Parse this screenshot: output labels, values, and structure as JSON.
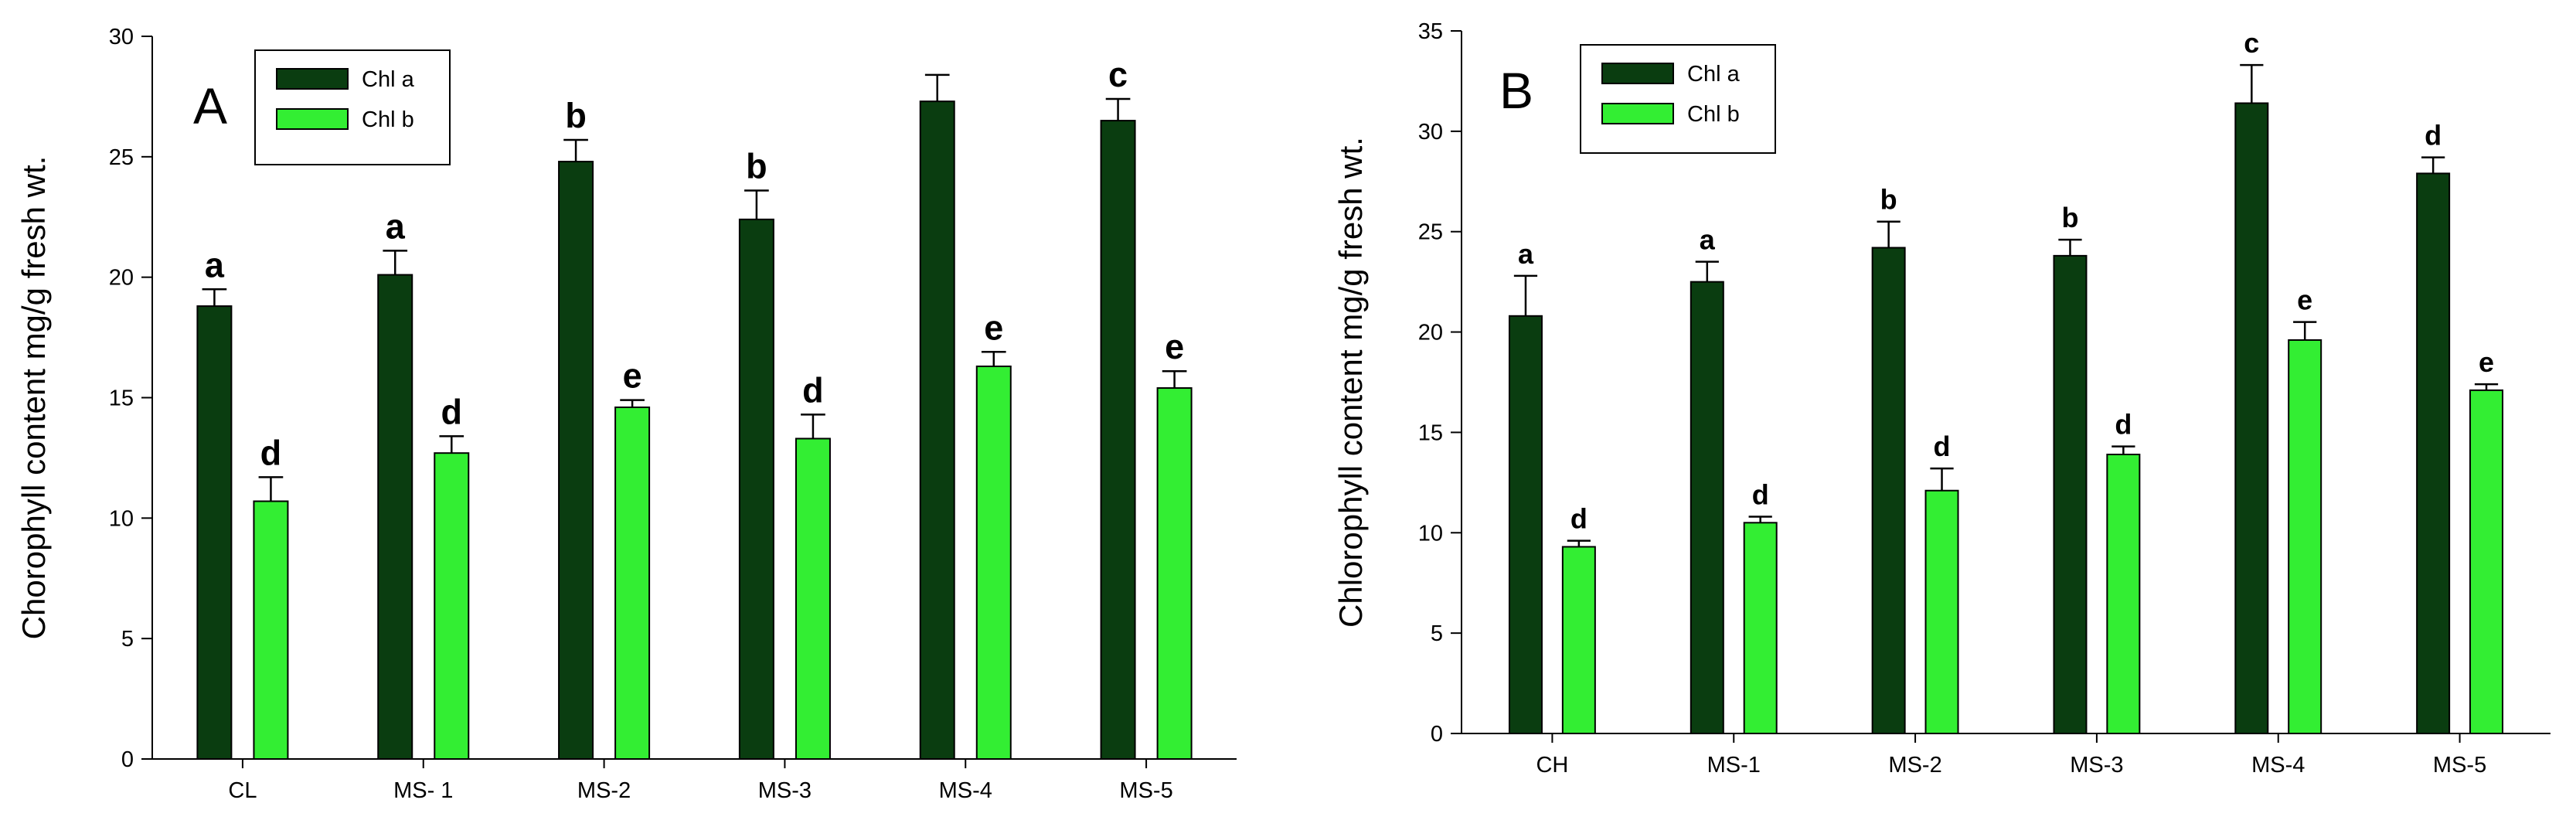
{
  "colors": {
    "chl_a": "#0a3d10",
    "chl_b": "#33ee33"
  },
  "chart_data": [
    {
      "type": "bar",
      "panel_label": "A",
      "title": "",
      "xlabel": "",
      "ylabel": "Chorophyll content mg/g fresh wt.",
      "ylim": [
        0,
        30
      ],
      "yticks": [
        "0",
        "5",
        "10",
        "15",
        "20",
        "25",
        "30"
      ],
      "categories": [
        "CL",
        "MS- 1",
        "MS-2",
        "MS-3",
        "MS-4",
        "MS-5"
      ],
      "legend_position": "top-left",
      "series": [
        {
          "name": "Chl a",
          "values": [
            18.8,
            20.1,
            24.8,
            22.4,
            27.3,
            26.5
          ],
          "errors": [
            0.7,
            1.0,
            0.9,
            1.2,
            1.1,
            0.9
          ],
          "labels": [
            "a",
            "a",
            "b",
            "b",
            "",
            "c"
          ]
        },
        {
          "name": "Chl b",
          "values": [
            10.7,
            12.7,
            14.6,
            13.3,
            16.3,
            15.4
          ],
          "errors": [
            1.0,
            0.7,
            0.3,
            1.0,
            0.6,
            0.7
          ],
          "labels": [
            "d",
            "d",
            "e",
            "d",
            "e",
            "e"
          ]
        }
      ]
    },
    {
      "type": "bar",
      "panel_label": "B",
      "title": "",
      "xlabel": "",
      "ylabel": "Chlorophyll content mg/g fresh wt.",
      "ylim": [
        0,
        35
      ],
      "yticks": [
        "0",
        "5",
        "10",
        "15",
        "20",
        "25",
        "30",
        "35"
      ],
      "categories": [
        "CH",
        "MS-1",
        "MS-2",
        "MS-3",
        "MS-4",
        "MS-5"
      ],
      "legend_position": "top-left",
      "series": [
        {
          "name": "Chl a",
          "values": [
            20.8,
            22.5,
            24.2,
            23.8,
            31.4,
            27.9
          ],
          "errors": [
            2.0,
            1.0,
            1.3,
            0.8,
            1.9,
            0.8
          ],
          "labels": [
            "a",
            "a",
            "b",
            "b",
            "c",
            "d"
          ]
        },
        {
          "name": "Chl b",
          "values": [
            9.3,
            10.5,
            12.1,
            13.9,
            19.6,
            17.1
          ],
          "errors": [
            0.3,
            0.3,
            1.1,
            0.4,
            0.9,
            0.3
          ],
          "labels": [
            "d",
            "d",
            "d",
            "d",
            "e",
            "e"
          ]
        }
      ]
    }
  ]
}
